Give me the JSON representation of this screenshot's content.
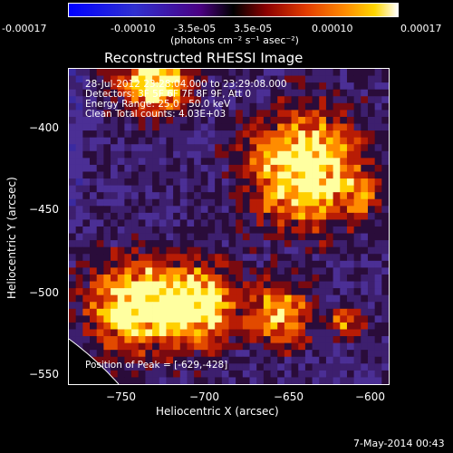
{
  "colorbar": {
    "tick_labels": [
      "-0.00017",
      "-0.00010",
      "-3.5e-05",
      "3.5e-05",
      "0.00010",
      "0.00017"
    ],
    "unit_label": "(photons cm⁻² s⁻¹ asec⁻²)"
  },
  "chart_data": {
    "type": "heatmap",
    "title": "Reconstructed RHESSI Image",
    "xlabel": "Heliocentric X (arcsec)",
    "ylabel": "Heliocentric Y (arcsec)",
    "xlim": [
      -780,
      -595
    ],
    "ylim": [
      -555,
      -375
    ],
    "x_ticks": [
      -750,
      -700,
      -650,
      -600
    ],
    "y_ticks": [
      -400,
      -450,
      -500,
      -550
    ],
    "x_tick_labels": [
      "−750",
      "−700",
      "−650",
      "−600"
    ],
    "y_tick_labels": [
      "−400",
      "−450",
      "−500",
      "−550"
    ],
    "colorbar_range": [
      -0.00017,
      0.00017
    ],
    "grid": false,
    "peak": [
      -629,
      -428
    ],
    "info_lines": [
      "28-Jul-2012 23:28:04.000 to 23:29:08.000",
      "Detectors: 3F 5F 6F 7F 8F 9F, Att 0",
      "Energy Range: 25.0 - 50.0 keV",
      "Clean     Total counts: 4.03E+03"
    ],
    "peak_label": "Position of Peak = [-629,-428]"
  },
  "footer": {
    "timestamp": "7-May-2014 00:43"
  }
}
